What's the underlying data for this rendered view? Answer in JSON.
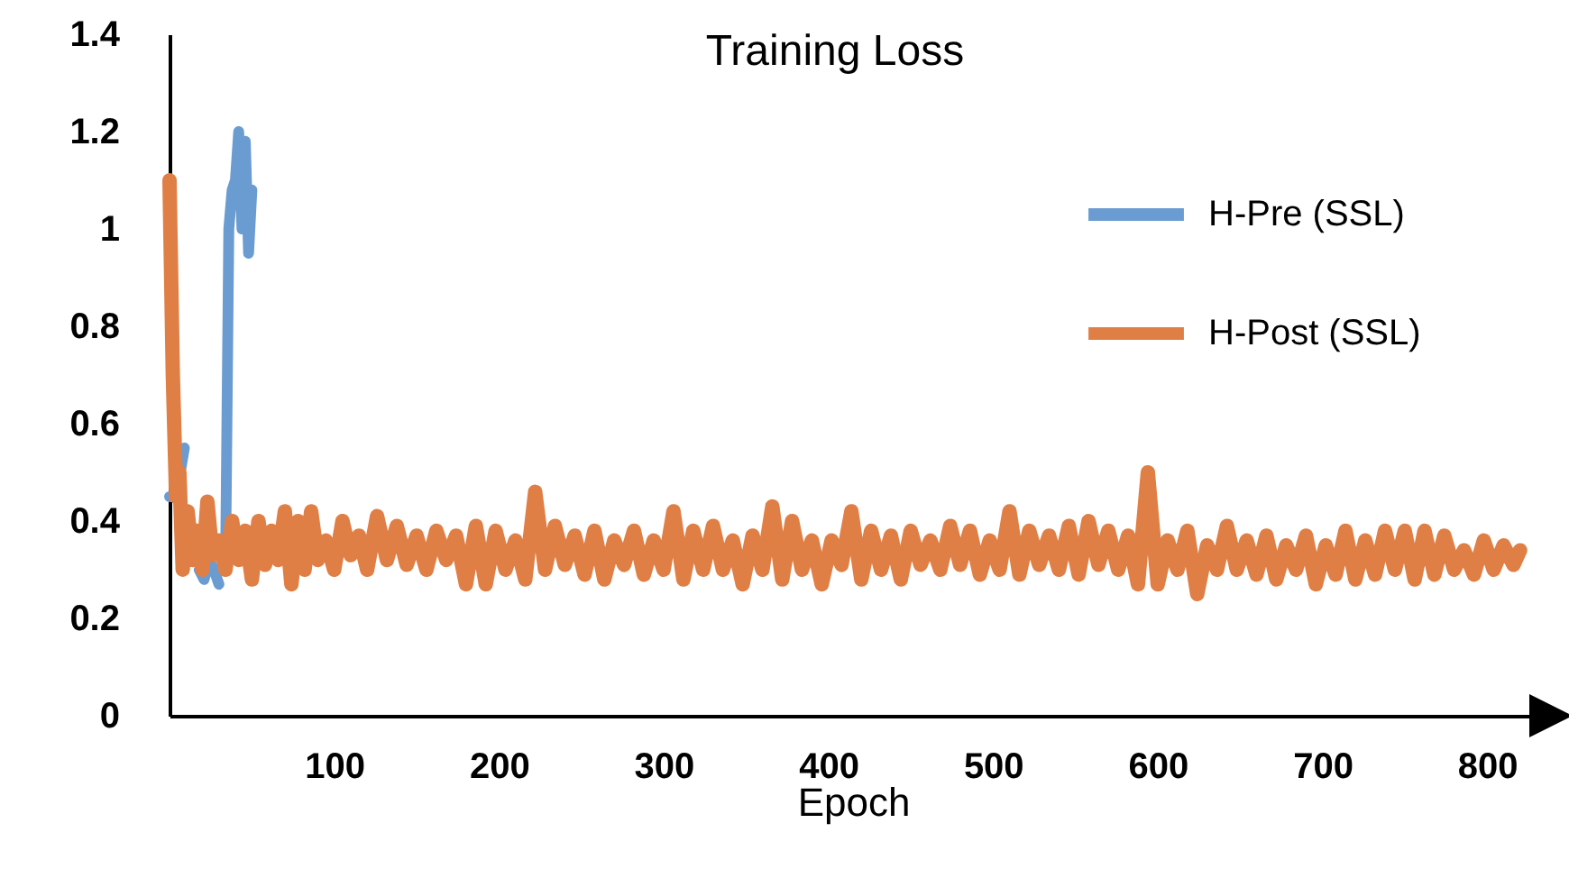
{
  "chart_data": {
    "type": "line",
    "title": "Training Loss",
    "xlabel": "Epoch",
    "xlim": [
      0,
      830
    ],
    "xticks": [
      100,
      200,
      300,
      400,
      500,
      600,
      700,
      800
    ],
    "ylim": [
      0,
      1.4
    ],
    "yticks": [
      0,
      0.2,
      0.4,
      0.6,
      0.8,
      1,
      1.2,
      1.4
    ],
    "grid": false,
    "legend": "top right",
    "marker": "none",
    "line_style": "solid",
    "series": [
      {
        "name": "H-Pre (SSL)",
        "color": "#6a9bd1",
        "x": [
          0,
          4,
          9,
          12,
          14,
          16,
          18,
          21,
          24,
          27,
          30,
          32,
          34,
          36,
          38,
          40,
          42,
          44,
          46,
          48,
          50
        ],
        "values": [
          0.45,
          0.45,
          0.55,
          null,
          null,
          null,
          0.3,
          0.28,
          0.32,
          0.3,
          0.27,
          null,
          0.3,
          1.0,
          1.08,
          1.1,
          1.2,
          1.0,
          1.18,
          0.95,
          1.08
        ]
      },
      {
        "name": "H-Post (SSL)",
        "color": "#e07f45",
        "x": [
          0,
          2,
          4,
          6,
          8,
          11,
          14,
          17,
          20,
          23,
          26,
          30,
          34,
          38,
          42,
          46,
          50,
          54,
          58,
          62,
          66,
          70,
          74,
          78,
          82,
          86,
          90,
          95,
          100,
          105,
          110,
          115,
          120,
          126,
          132,
          138,
          144,
          150,
          156,
          162,
          168,
          174,
          180,
          186,
          192,
          198,
          204,
          210,
          216,
          222,
          228,
          234,
          240,
          246,
          252,
          258,
          264,
          270,
          276,
          282,
          288,
          294,
          300,
          306,
          312,
          318,
          324,
          330,
          336,
          342,
          348,
          354,
          360,
          366,
          372,
          378,
          384,
          390,
          396,
          402,
          408,
          414,
          420,
          426,
          432,
          438,
          444,
          450,
          456,
          462,
          468,
          474,
          480,
          486,
          492,
          498,
          504,
          510,
          516,
          522,
          528,
          534,
          540,
          546,
          552,
          558,
          564,
          570,
          576,
          582,
          588,
          594,
          600,
          606,
          612,
          618,
          624,
          630,
          636,
          642,
          648,
          654,
          660,
          666,
          672,
          678,
          684,
          690,
          696,
          702,
          708,
          714,
          720,
          726,
          732,
          738,
          744,
          750,
          756,
          762,
          768,
          774,
          780,
          786,
          792,
          798,
          804,
          810,
          816,
          820
        ],
        "values": [
          1.1,
          0.7,
          0.45,
          0.5,
          0.3,
          0.42,
          0.32,
          0.38,
          0.3,
          0.44,
          0.33,
          0.36,
          0.3,
          0.4,
          0.32,
          0.38,
          0.28,
          0.4,
          0.31,
          0.38,
          0.32,
          0.42,
          0.27,
          0.4,
          0.3,
          0.42,
          0.32,
          0.36,
          0.3,
          0.4,
          0.33,
          0.37,
          0.3,
          0.41,
          0.32,
          0.39,
          0.31,
          0.37,
          0.3,
          0.38,
          0.32,
          0.37,
          0.27,
          0.39,
          0.27,
          0.38,
          0.3,
          0.36,
          0.28,
          0.46,
          0.3,
          0.39,
          0.31,
          0.37,
          0.29,
          0.38,
          0.28,
          0.36,
          0.31,
          0.38,
          0.29,
          0.36,
          0.3,
          0.42,
          0.28,
          0.38,
          0.3,
          0.39,
          0.3,
          0.36,
          0.27,
          0.37,
          0.3,
          0.43,
          0.28,
          0.4,
          0.3,
          0.36,
          0.27,
          0.36,
          0.31,
          0.42,
          0.28,
          0.38,
          0.3,
          0.37,
          0.28,
          0.38,
          0.31,
          0.36,
          0.3,
          0.39,
          0.31,
          0.38,
          0.29,
          0.36,
          0.3,
          0.42,
          0.29,
          0.38,
          0.31,
          0.37,
          0.3,
          0.39,
          0.29,
          0.4,
          0.31,
          0.38,
          0.3,
          0.37,
          0.27,
          0.5,
          0.27,
          0.36,
          0.3,
          0.38,
          0.25,
          0.35,
          0.3,
          0.39,
          0.3,
          0.36,
          0.29,
          0.37,
          0.28,
          0.35,
          0.3,
          0.37,
          0.27,
          0.35,
          0.29,
          0.38,
          0.28,
          0.36,
          0.29,
          0.38,
          0.3,
          0.38,
          0.28,
          0.38,
          0.29,
          0.37,
          0.3,
          0.34,
          0.29,
          0.36,
          0.3,
          0.35,
          0.31,
          0.34
        ]
      }
    ]
  }
}
